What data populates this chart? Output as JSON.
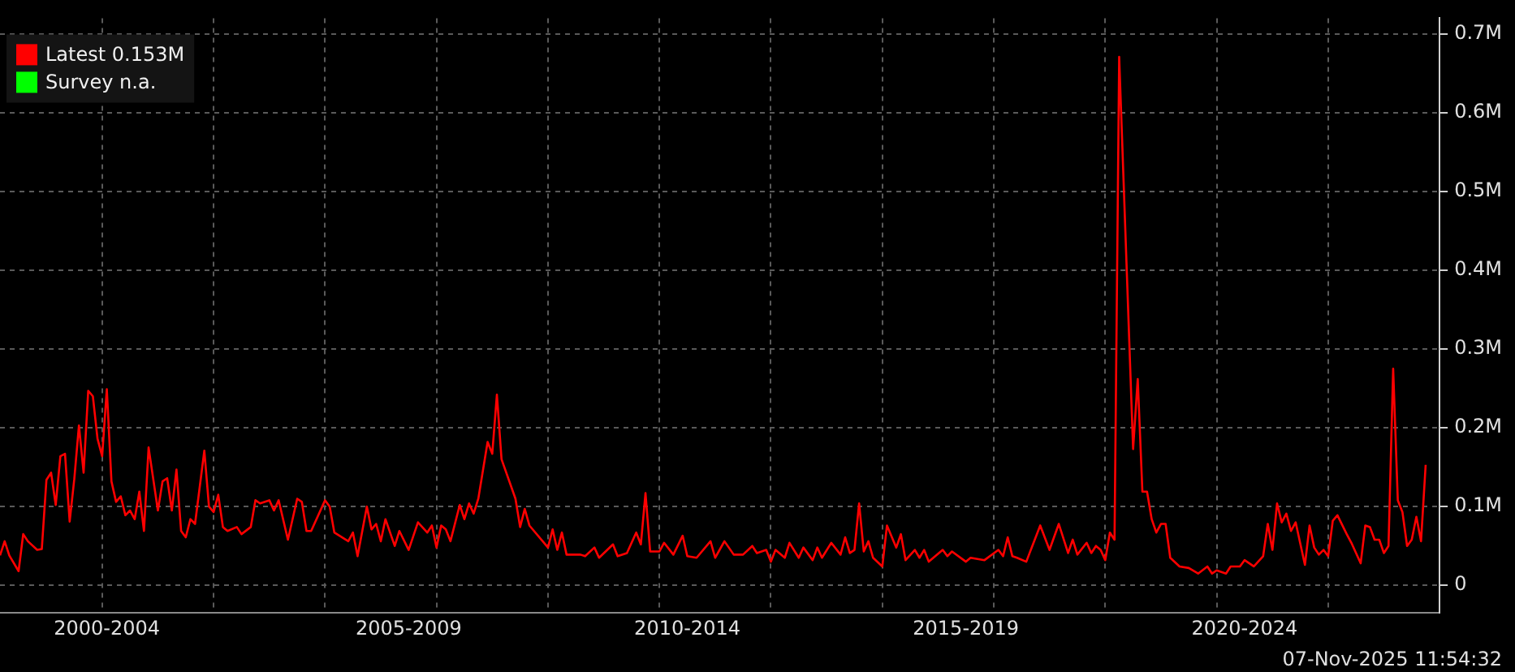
{
  "chart_data": {
    "type": "line",
    "legend": "top left",
    "grid": true,
    "xlim": [
      "2000-03",
      "2026-01"
    ],
    "xticks": [
      {
        "value": "2002-01",
        "label": null
      },
      {
        "value": "2002-02",
        "label": "2000-2004"
      },
      {
        "value": "2004-01",
        "label": null
      },
      {
        "value": "2006-01",
        "label": null
      },
      {
        "value": "2007-07",
        "label": "2005-2009"
      },
      {
        "value": "2008-01",
        "label": null
      },
      {
        "value": "2010-01",
        "label": null
      },
      {
        "value": "2012-01",
        "label": null
      },
      {
        "value": "2012-07",
        "label": "2010-2014"
      },
      {
        "value": "2014-01",
        "label": null
      },
      {
        "value": "2016-01",
        "label": null
      },
      {
        "value": "2017-07",
        "label": "2015-2019"
      },
      {
        "value": "2018-01",
        "label": null
      },
      {
        "value": "2020-01",
        "label": null
      },
      {
        "value": "2022-01",
        "label": null
      },
      {
        "value": "2022-07",
        "label": "2020-2024"
      },
      {
        "value": "2024-01",
        "label": null
      }
    ],
    "ylim": [
      -0.035,
      0.72
    ],
    "yticks": [
      0,
      {
        "value": 0.1,
        "label": "0.1M"
      },
      {
        "value": 0.2,
        "label": "0.2M"
      },
      {
        "value": 0.3,
        "label": "0.3M"
      },
      {
        "value": 0.4,
        "label": "0.4M"
      },
      {
        "value": 0.5,
        "label": "0.5M"
      },
      {
        "value": 0.6,
        "label": "0.6M"
      },
      {
        "value": 0.7,
        "label": "0.7M"
      }
    ],
    "annotations": [
      "07-Nov-2025 11:54:32"
    ],
    "series": [
      {
        "name": "Latest 0.153M",
        "color": "#ff0000",
        "x": [
          "2000-03",
          "2000-04",
          "2000-05",
          "2000-07",
          "2000-08",
          "2000-09",
          "2000-11",
          "2000-12",
          "2001-01",
          "2001-02",
          "2001-03",
          "2001-04",
          "2001-05",
          "2001-06",
          "2001-07",
          "2001-08",
          "2001-09",
          "2001-10",
          "2001-11",
          "2001-12",
          "2002-01",
          "2002-02",
          "2002-03",
          "2002-04",
          "2002-05",
          "2002-06",
          "2002-07",
          "2002-08",
          "2002-09",
          "2002-10",
          "2002-11",
          "2003-01",
          "2003-02",
          "2003-03",
          "2003-04",
          "2003-05",
          "2003-06",
          "2003-07",
          "2003-08",
          "2003-09",
          "2003-11",
          "2003-12",
          "2004-01",
          "2004-02",
          "2004-03",
          "2004-04",
          "2004-06",
          "2004-07",
          "2004-09",
          "2004-10",
          "2004-11",
          "2005-01",
          "2005-02",
          "2005-03",
          "2005-05",
          "2005-07",
          "2005-08",
          "2005-09",
          "2005-10",
          "2006-01",
          "2006-02",
          "2006-03",
          "2006-06",
          "2006-07",
          "2006-08",
          "2006-10",
          "2006-11",
          "2006-12",
          "2007-01",
          "2007-02",
          "2007-04",
          "2007-05",
          "2007-07",
          "2007-09",
          "2007-11",
          "2007-12",
          "2008-01",
          "2008-02",
          "2008-03",
          "2008-04",
          "2008-06",
          "2008-07",
          "2008-08",
          "2008-09",
          "2008-10",
          "2008-12",
          "2009-01",
          "2009-02",
          "2009-03",
          "2009-06",
          "2009-07",
          "2009-08",
          "2009-09",
          "2010-01",
          "2010-02",
          "2010-03",
          "2010-04",
          "2010-05",
          "2010-08",
          "2010-09",
          "2010-11",
          "2010-12",
          "2011-03",
          "2011-04",
          "2011-06",
          "2011-08",
          "2011-09",
          "2011-10",
          "2011-11",
          "2012-01",
          "2012-02",
          "2012-04",
          "2012-06",
          "2012-07",
          "2012-09",
          "2012-12",
          "2013-01",
          "2013-03",
          "2013-05",
          "2013-07",
          "2013-09",
          "2013-10",
          "2013-12",
          "2014-01",
          "2014-02",
          "2014-04",
          "2014-05",
          "2014-07",
          "2014-08",
          "2014-10",
          "2014-11",
          "2014-12",
          "2015-02",
          "2015-04",
          "2015-05",
          "2015-06",
          "2015-07",
          "2015-08",
          "2015-09",
          "2015-10",
          "2015-11",
          "2016-01",
          "2016-02",
          "2016-04",
          "2016-05",
          "2016-06",
          "2016-08",
          "2016-09",
          "2016-10",
          "2016-11",
          "2017-02",
          "2017-03",
          "2017-04",
          "2017-07",
          "2017-08",
          "2017-11",
          "2018-02",
          "2018-03",
          "2018-04",
          "2018-05",
          "2018-06",
          "2018-08",
          "2018-11",
          "2019-01",
          "2019-03",
          "2019-05",
          "2019-06",
          "2019-07",
          "2019-09",
          "2019-10",
          "2019-11",
          "2019-12",
          "2020-01",
          "2020-02",
          "2020-03",
          "2020-04",
          "2020-07",
          "2020-08",
          "2020-09",
          "2020-10",
          "2020-11",
          "2020-12",
          "2021-01",
          "2021-02",
          "2021-03",
          "2021-05",
          "2021-07",
          "2021-09",
          "2021-11",
          "2021-12",
          "2022-01",
          "2022-03",
          "2022-04",
          "2022-06",
          "2022-07",
          "2022-09",
          "2022-11",
          "2022-12",
          "2023-01",
          "2023-02",
          "2023-03",
          "2023-04",
          "2023-05",
          "2023-06",
          "2023-08",
          "2023-09",
          "2023-10",
          "2023-11",
          "2023-12",
          "2024-01",
          "2024-02",
          "2024-03",
          "2024-05",
          "2024-06",
          "2024-08",
          "2024-09",
          "2024-10",
          "2024-11",
          "2024-12",
          "2025-01",
          "2025-02",
          "2025-03",
          "2025-04",
          "2025-05",
          "2025-06",
          "2025-07",
          "2025-08",
          "2025-09",
          "2025-10"
        ],
        "values": [
          0.038,
          0.056,
          0.038,
          0.018,
          0.065,
          0.056,
          0.045,
          0.046,
          0.134,
          0.143,
          0.102,
          0.164,
          0.167,
          0.081,
          0.135,
          0.203,
          0.143,
          0.247,
          0.24,
          0.186,
          0.164,
          0.249,
          0.132,
          0.106,
          0.113,
          0.089,
          0.095,
          0.084,
          0.119,
          0.069,
          0.175,
          0.095,
          0.132,
          0.136,
          0.095,
          0.147,
          0.069,
          0.061,
          0.084,
          0.078,
          0.171,
          0.1,
          0.093,
          0.115,
          0.074,
          0.069,
          0.074,
          0.065,
          0.074,
          0.108,
          0.104,
          0.108,
          0.095,
          0.108,
          0.058,
          0.11,
          0.106,
          0.069,
          0.069,
          0.108,
          0.1,
          0.067,
          0.056,
          0.067,
          0.037,
          0.1,
          0.071,
          0.078,
          0.056,
          0.084,
          0.05,
          0.069,
          0.045,
          0.08,
          0.067,
          0.076,
          0.048,
          0.076,
          0.071,
          0.056,
          0.102,
          0.084,
          0.104,
          0.091,
          0.11,
          0.182,
          0.167,
          0.242,
          0.16,
          0.11,
          0.074,
          0.097,
          0.076,
          0.048,
          0.071,
          0.045,
          0.067,
          0.039,
          0.039,
          0.037,
          0.048,
          0.035,
          0.052,
          0.037,
          0.041,
          0.067,
          0.052,
          0.117,
          0.043,
          0.043,
          0.054,
          0.039,
          0.063,
          0.037,
          0.035,
          0.056,
          0.035,
          0.056,
          0.039,
          0.039,
          0.05,
          0.041,
          0.045,
          0.03,
          0.045,
          0.035,
          0.054,
          0.035,
          0.048,
          0.032,
          0.048,
          0.035,
          0.054,
          0.039,
          0.061,
          0.041,
          0.045,
          0.104,
          0.043,
          0.056,
          0.035,
          0.024,
          0.076,
          0.048,
          0.065,
          0.032,
          0.045,
          0.035,
          0.045,
          0.03,
          0.045,
          0.037,
          0.043,
          0.03,
          0.035,
          0.032,
          0.045,
          0.037,
          0.061,
          0.037,
          0.035,
          0.03,
          0.076,
          0.045,
          0.078,
          0.041,
          0.058,
          0.039,
          0.054,
          0.041,
          0.05,
          0.045,
          0.032,
          0.067,
          0.058,
          0.671,
          0.173,
          0.262,
          0.119,
          0.119,
          0.084,
          0.067,
          0.078,
          0.078,
          0.035,
          0.024,
          0.022,
          0.015,
          0.024,
          0.015,
          0.019,
          0.015,
          0.024,
          0.024,
          0.032,
          0.024,
          0.037,
          0.078,
          0.045,
          0.104,
          0.08,
          0.091,
          0.069,
          0.08,
          0.026,
          0.076,
          0.048,
          0.039,
          0.045,
          0.037,
          0.082,
          0.089,
          0.065,
          0.054,
          0.028,
          0.076,
          0.074,
          0.058,
          0.058,
          0.041,
          0.05,
          0.275,
          0.108,
          0.093,
          0.05,
          0.058,
          0.087,
          0.056,
          0.153
        ]
      },
      {
        "name": "Survey n.a.",
        "color": "#00ff00"
      }
    ]
  }
}
